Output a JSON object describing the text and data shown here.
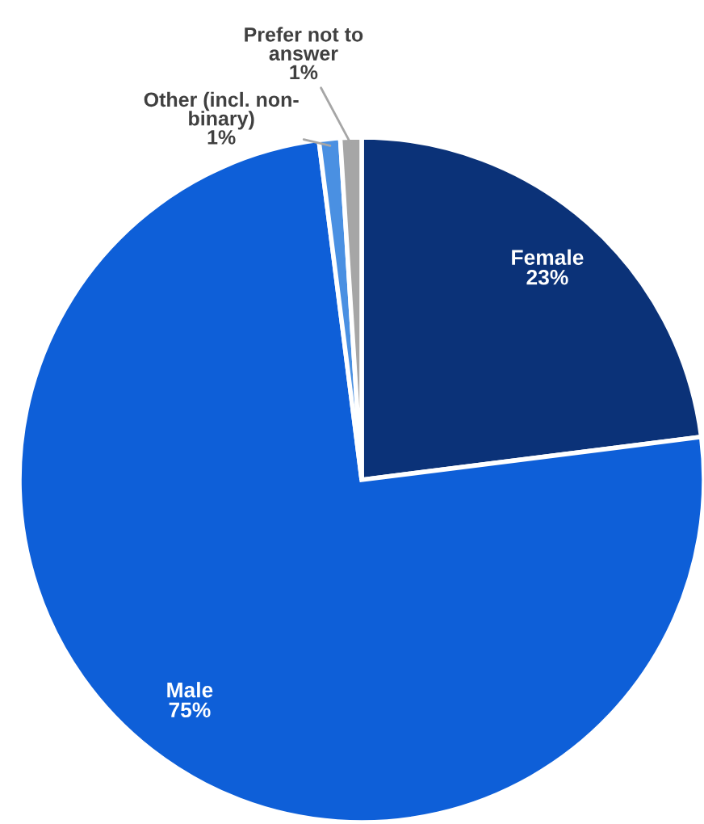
{
  "chart_data": {
    "type": "pie",
    "categories": [
      "Female",
      "Male",
      "Other (incl. non-\nbinary)",
      "Prefer not to\nanswer"
    ],
    "values": [
      23,
      75,
      1,
      1
    ],
    "colors": [
      "#0b3278",
      "#0e5fd8",
      "#4a90e2",
      "#a6a6a6"
    ],
    "value_labels": [
      "23%",
      "75%",
      "1%",
      "1%"
    ]
  }
}
